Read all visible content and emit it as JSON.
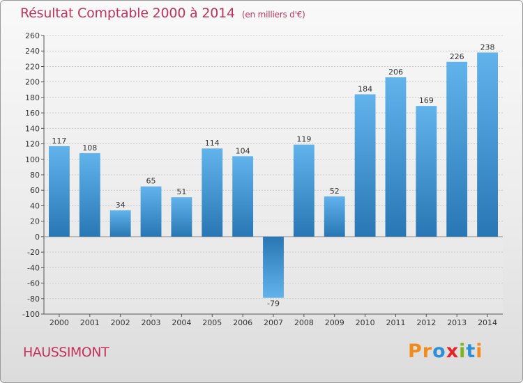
{
  "title": "Résultat Comptable 2000 à 2014",
  "subtitle": "(en milliers d'€)",
  "place": "HAUSSIMONT",
  "logo": {
    "text": "Proxiti",
    "letters": [
      {
        "char": "P",
        "color": "#f28b1d"
      },
      {
        "char": "r",
        "color": "#f28b1d"
      },
      {
        "char": "o",
        "color": "#2e8fd6"
      },
      {
        "char": "x",
        "color": "#e4232b"
      },
      {
        "char": "i",
        "color": "#7cb41b"
      },
      {
        "char": "t",
        "color": "#2e8fd6"
      },
      {
        "char": "i",
        "color": "#f28b1d"
      }
    ]
  },
  "colors": {
    "bar_light": "#62b3ec",
    "bar_dark": "#2877b4",
    "title": "#c0335a"
  },
  "chart_data": {
    "type": "bar",
    "title": "Résultat Comptable 2000 à 2014",
    "subtitle": "(en milliers d'€)",
    "categories": [
      "2000",
      "2001",
      "2002",
      "2003",
      "2004",
      "2005",
      "2006",
      "2007",
      "2008",
      "2009",
      "2010",
      "2011",
      "2012",
      "2013",
      "2014"
    ],
    "values": [
      117,
      108,
      34,
      65,
      51,
      114,
      104,
      -79,
      119,
      52,
      184,
      206,
      169,
      226,
      238
    ],
    "ylim": [
      -100,
      260
    ],
    "ytick_step": 20,
    "grid": true,
    "xlabel": "",
    "ylabel": ""
  }
}
